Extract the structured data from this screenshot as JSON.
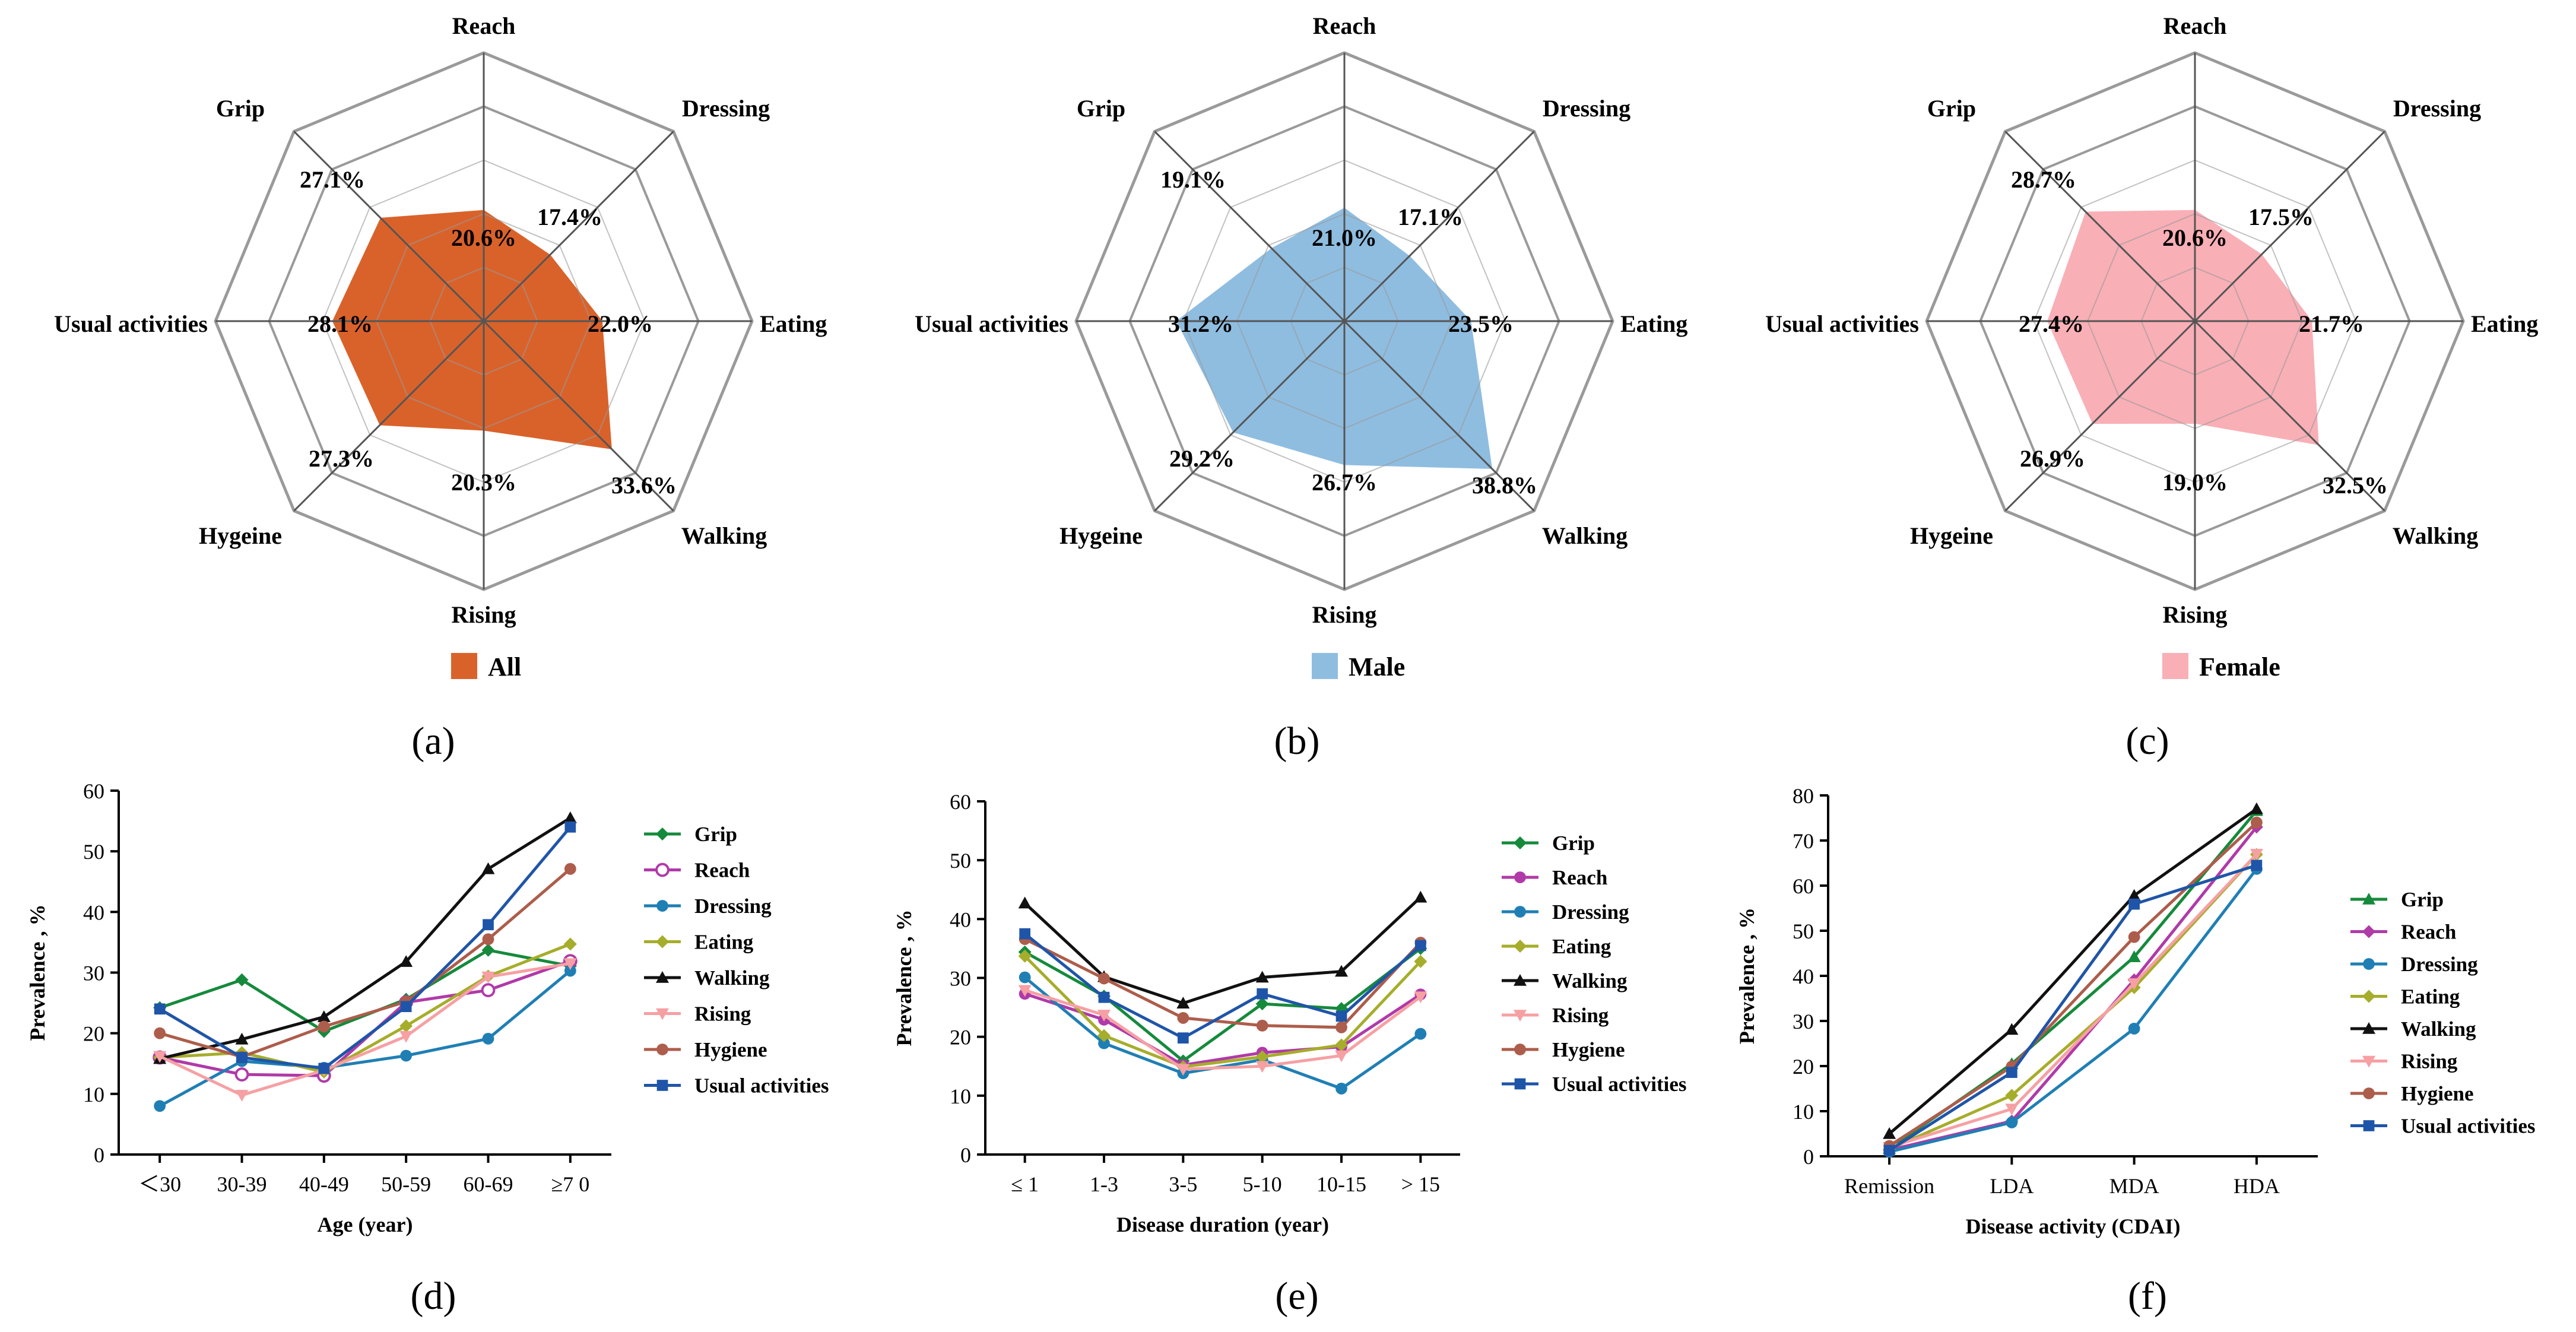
{
  "panel_labels": [
    "(a)",
    "(b)",
    "(c)",
    "(d)",
    "(e)",
    "(f)"
  ],
  "colors": {
    "all": "#d9622b",
    "male": "#8fbde0",
    "female": "#f9afb6",
    "web": "#9a9a9a",
    "Grip": "#158a3c",
    "Reach": "#b03aa8",
    "Dressing": "#1f7fb4",
    "Eating": "#a6ad2a",
    "Walking": "#111111",
    "Rising": "#f6a0a4",
    "Hygiene": "#ad5d4b",
    "Usual activities": "#1f55a8"
  },
  "chart_data": [
    {
      "type": "radar",
      "axes": [
        "Reach",
        "Dressing",
        "Eating",
        "Walking",
        "Rising",
        "Hygeine",
        "Usual activities",
        "Grip"
      ],
      "values": [
        20.6,
        17.4,
        22.0,
        33.6,
        20.3,
        27.3,
        28.1,
        27.1
      ],
      "value_labels": [
        "20.6%",
        "17.4%",
        "22.0%",
        "33.6%",
        "20.3%",
        "27.3%",
        "28.1%",
        "27.1%"
      ],
      "range": [
        0,
        50
      ],
      "series_name": "All",
      "color_key": "all"
    },
    {
      "type": "radar",
      "axes": [
        "Reach",
        "Dressing",
        "Eating",
        "Walking",
        "Rising",
        "Hygeine",
        "Usual activities",
        "Grip"
      ],
      "values": [
        21.0,
        17.1,
        23.5,
        38.8,
        26.7,
        29.2,
        31.2,
        19.1
      ],
      "value_labels": [
        "21.0%",
        "17.1%",
        "23.5%",
        "38.8%",
        "26.7%",
        "29.2%",
        "31.2%",
        "19.1%"
      ],
      "range": [
        0,
        50
      ],
      "series_name": "Male",
      "color_key": "male"
    },
    {
      "type": "radar",
      "axes": [
        "Reach",
        "Dressing",
        "Eating",
        "Walking",
        "Rising",
        "Hygeine",
        "Usual activities",
        "Grip"
      ],
      "values": [
        20.6,
        17.5,
        21.7,
        32.5,
        19.0,
        26.9,
        27.4,
        28.7
      ],
      "value_labels": [
        "20.6%",
        "17.5%",
        "21.7%",
        "32.5%",
        "19.0%",
        "26.9%",
        "27.4%",
        "28.7%"
      ],
      "range": [
        0,
        50
      ],
      "series_name": "Female",
      "color_key": "female"
    },
    {
      "type": "line",
      "categories": [
        "＜30",
        "30-39",
        "40-49",
        "50-59",
        "60-69",
        "≥7 0"
      ],
      "xlabel": "Age (year)",
      "ylabel": "Prevalence , %",
      "ylim": [
        0,
        60
      ],
      "yticks": [
        0,
        10,
        20,
        30,
        40,
        50,
        60
      ],
      "legend_position": "right",
      "series": [
        {
          "name": "Grip",
          "marker": "diamond",
          "values": [
            24.2,
            28.8,
            20.3,
            25.6,
            33.7,
            31.1
          ]
        },
        {
          "name": "Reach",
          "marker": "circle-open",
          "values": [
            16.0,
            13.2,
            13.0,
            25.1,
            27.1,
            31.9
          ]
        },
        {
          "name": "Dressing",
          "marker": "circle",
          "values": [
            8.0,
            15.4,
            14.3,
            16.3,
            19.1,
            30.3
          ]
        },
        {
          "name": "Eating",
          "marker": "diamond",
          "values": [
            16.0,
            16.8,
            13.6,
            21.2,
            29.4,
            34.7
          ]
        },
        {
          "name": "Walking",
          "marker": "triangle",
          "values": [
            15.8,
            19.0,
            22.7,
            31.8,
            47.1,
            55.5
          ]
        },
        {
          "name": "Rising",
          "marker": "triangle-down",
          "values": [
            16.2,
            9.8,
            13.9,
            19.5,
            29.3,
            31.5
          ]
        },
        {
          "name": "Hygiene",
          "marker": "circle",
          "values": [
            20.0,
            16.1,
            21.1,
            25.2,
            35.5,
            47.1
          ]
        },
        {
          "name": "Usual activities",
          "marker": "square",
          "values": [
            24.0,
            16.0,
            14.2,
            24.4,
            37.9,
            54.0
          ]
        }
      ]
    },
    {
      "type": "line",
      "categories": [
        "≤ 1",
        "1-3",
        "3-5",
        "5-10",
        "10-15",
        "> 15"
      ],
      "xlabel": "Disease duration (year)",
      "ylabel": "Prevalence , %",
      "ylim": [
        0,
        60
      ],
      "yticks": [
        0,
        10,
        20,
        30,
        40,
        50,
        60
      ],
      "legend_position": "right",
      "series": [
        {
          "name": "Grip",
          "marker": "diamond",
          "values": [
            34.4,
            26.9,
            15.9,
            25.6,
            24.8,
            35.0
          ]
        },
        {
          "name": "Reach",
          "marker": "circle",
          "values": [
            27.3,
            22.9,
            15.2,
            17.3,
            18.3,
            27.2
          ]
        },
        {
          "name": "Dressing",
          "marker": "circle",
          "values": [
            30.1,
            18.9,
            13.8,
            16.1,
            11.2,
            20.5
          ]
        },
        {
          "name": "Eating",
          "marker": "diamond",
          "values": [
            33.7,
            20.2,
            14.9,
            16.6,
            18.6,
            32.8
          ]
        },
        {
          "name": "Walking",
          "marker": "triangle",
          "values": [
            42.7,
            30.2,
            25.7,
            30.1,
            31.1,
            43.7
          ]
        },
        {
          "name": "Rising",
          "marker": "triangle-down",
          "values": [
            27.9,
            23.7,
            14.5,
            15.0,
            16.8,
            26.8
          ]
        },
        {
          "name": "Hygiene",
          "marker": "circle",
          "values": [
            36.6,
            29.9,
            23.2,
            21.9,
            21.6,
            36.0
          ]
        },
        {
          "name": "Usual activities",
          "marker": "square",
          "values": [
            37.5,
            26.7,
            19.8,
            27.3,
            23.5,
            35.5
          ]
        }
      ]
    },
    {
      "type": "line",
      "categories": [
        "Remission",
        "LDA",
        "MDA",
        "HDA"
      ],
      "xlabel": "Disease activity (CDAI)",
      "ylabel": "Prevalence , %",
      "ylim": [
        0,
        80
      ],
      "yticks": [
        0,
        10,
        20,
        30,
        40,
        50,
        60,
        70,
        80
      ],
      "legend_position": "right",
      "series": [
        {
          "name": "Grip",
          "marker": "triangle",
          "values": [
            1.7,
            20.5,
            44.2,
            76.6
          ]
        },
        {
          "name": "Reach",
          "marker": "diamond",
          "values": [
            1.4,
            7.8,
            39.1,
            73.0
          ]
        },
        {
          "name": "Dressing",
          "marker": "circle",
          "values": [
            1.0,
            7.5,
            28.3,
            63.7
          ]
        },
        {
          "name": "Eating",
          "marker": "diamond",
          "values": [
            1.6,
            13.5,
            37.4,
            66.9
          ]
        },
        {
          "name": "Walking",
          "marker": "triangle",
          "values": [
            5.0,
            28.1,
            57.8,
            77.0
          ]
        },
        {
          "name": "Rising",
          "marker": "triangle-down",
          "values": [
            2.0,
            10.5,
            38.3,
            67.0
          ]
        },
        {
          "name": "Hygiene",
          "marker": "circle",
          "values": [
            2.3,
            19.9,
            48.6,
            74.0
          ]
        },
        {
          "name": "Usual activities",
          "marker": "square",
          "values": [
            1.3,
            18.6,
            55.9,
            64.5
          ]
        }
      ]
    }
  ]
}
